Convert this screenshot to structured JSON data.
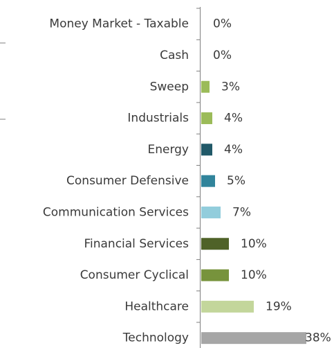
{
  "chart_data": {
    "type": "bar",
    "orientation": "horizontal",
    "categories": [
      "Money Market - Taxable",
      "Cash",
      "Sweep",
      "Industrials",
      "Energy",
      "Consumer Defensive",
      "Communication Services",
      "Financial Services",
      "Consumer Cyclical",
      "Healthcare",
      "Technology"
    ],
    "values": [
      0,
      0,
      3,
      4,
      4,
      5,
      7,
      10,
      10,
      19,
      38
    ],
    "value_labels": [
      "0%",
      "0%",
      "3%",
      "4%",
      "4%",
      "5%",
      "7%",
      "10%",
      "10%",
      "19%",
      "38%"
    ],
    "colors": [
      "#9bbb59",
      "#9bbb59",
      "#9bbb59",
      "#9bbb59",
      "#215968",
      "#31849b",
      "#92cddc",
      "#4f6228",
      "#77933c",
      "#c3d69b",
      "#a6a6a6"
    ]
  }
}
